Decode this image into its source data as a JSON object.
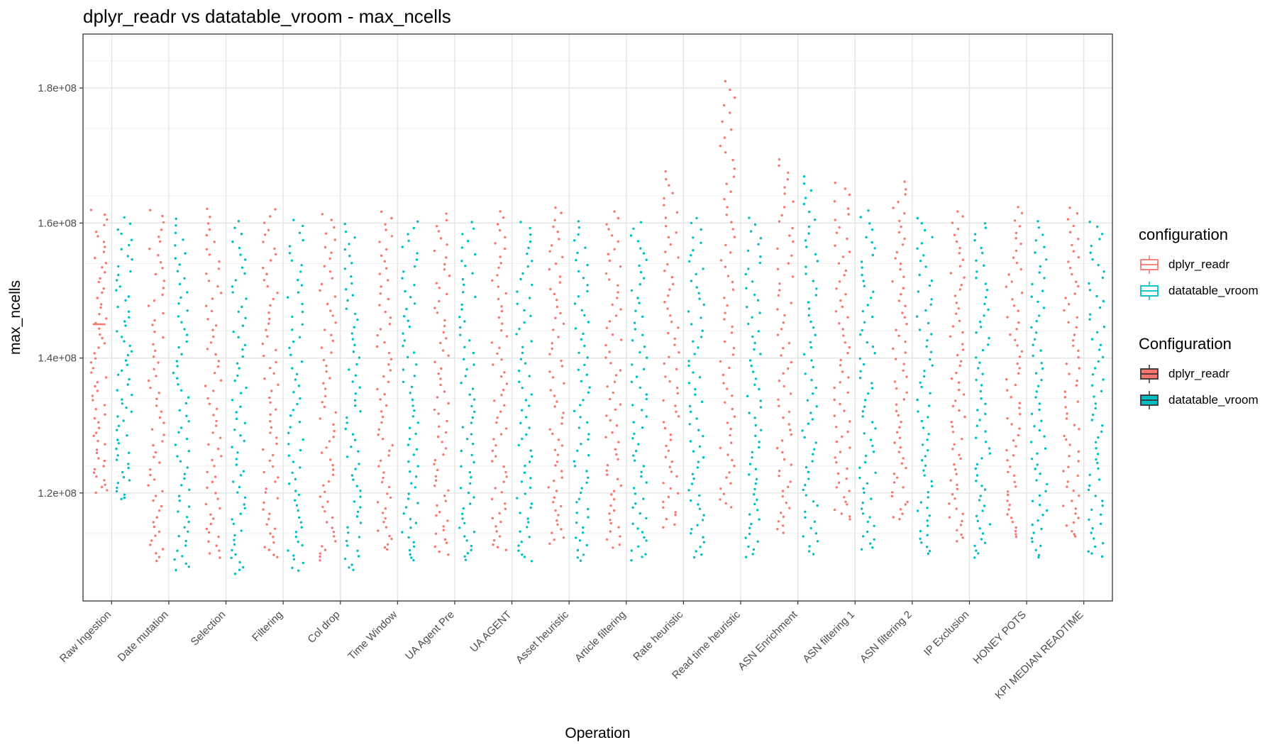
{
  "chart_data": {
    "type": "scatter",
    "title": "dplyr_readr vs datatable_vroom - max_ncells",
    "xlabel": "Operation",
    "ylabel": "max_ncells",
    "ylim": [
      104000000,
      188000000
    ],
    "yticks": [
      120000000,
      140000000,
      160000000,
      180000000
    ],
    "ytick_labels": [
      "1.2e+08",
      "1.4e+08",
      "1.6e+08",
      "1.8e+08"
    ],
    "grid": true,
    "legend_position": "right",
    "categories": [
      "Raw Ingestion",
      "Date mutation",
      "Selection",
      "Filtering",
      "Col drop",
      "Time Window",
      "UA Agent Pre",
      "UA AGENT",
      "Asset heuristic",
      "Article filtering",
      "Rate heuristic",
      "Read time heuristic",
      "ASN Enrichment",
      "ASN filtering 1",
      "ASN filtering 2",
      "IP Exclusion",
      "HONEY POTS",
      "KPI MEDIAN READTIME"
    ],
    "series": [
      {
        "name": "dplyr_readr",
        "color": "#F8766D",
        "min": [
          120000000,
          110000000,
          110500000,
          110500000,
          110000000,
          111500000,
          111000000,
          111500000,
          112500000,
          112000000,
          115000000,
          117800000,
          114000000,
          116000000,
          116000000,
          113000000,
          113500000,
          113500000
        ],
        "max": [
          162000000,
          162000000,
          162000000,
          162000000,
          161300000,
          161800000,
          161500000,
          161700000,
          162300000,
          161800000,
          167500000,
          181000000,
          169500000,
          166000000,
          166000000,
          161800000,
          162300000,
          162300000
        ],
        "median": [
          145000000,
          null,
          null,
          null,
          null,
          null,
          null,
          null,
          null,
          null,
          null,
          null,
          null,
          null,
          null,
          null,
          null,
          null
        ]
      },
      {
        "name": "datatable_vroom",
        "color": "#00BFC4",
        "min": [
          119000000,
          108500000,
          108000000,
          108500000,
          108500000,
          110000000,
          110000000,
          110000000,
          110000000,
          110000000,
          110500000,
          110500000,
          111000000,
          111500000,
          111000000,
          110500000,
          110500000,
          110500000
        ],
        "max": [
          160700000,
          160500000,
          160300000,
          160400000,
          159800000,
          160200000,
          160100000,
          160100000,
          160200000,
          160100000,
          160800000,
          160700000,
          166900000,
          161800000,
          160800000,
          160100000,
          160200000,
          160300000
        ]
      }
    ]
  },
  "legend": {
    "configuration_title": "configuration",
    "configuration_items": [
      "dplyr_readr",
      "datatable_vroom"
    ],
    "Configuration_title": "Configuration",
    "Configuration_items": [
      "dplyr_readr",
      "datatable_vroom"
    ]
  }
}
